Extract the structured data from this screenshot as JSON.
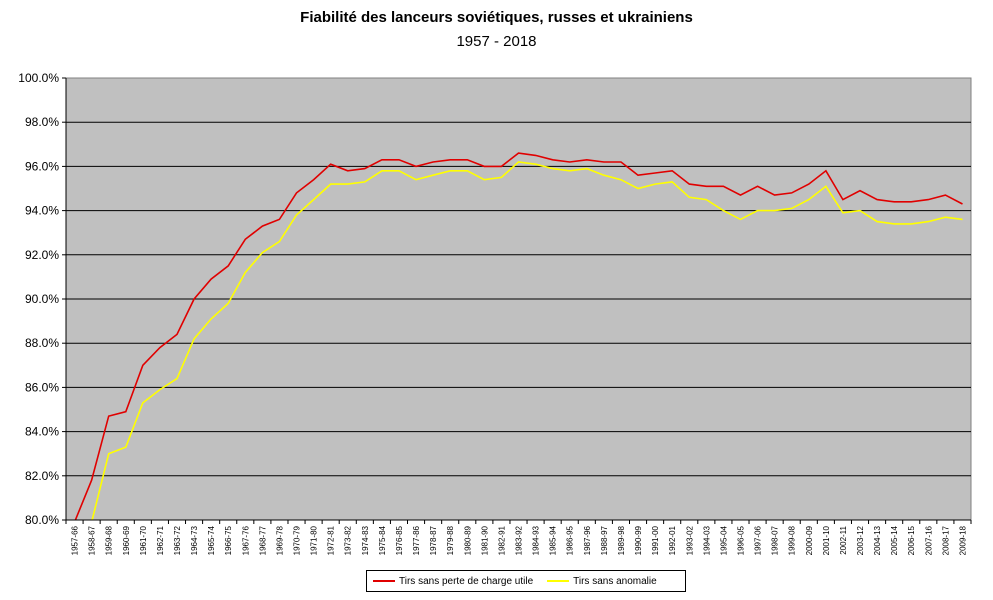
{
  "chart_data": {
    "type": "line",
    "title": "Fiabilité des lanceurs soviétiques, russes et ukrainiens",
    "subtitle": "1957 - 2018",
    "xlabel": "",
    "ylabel": "",
    "ylim": [
      80,
      100
    ],
    "y_ticks": [
      "80.0%",
      "82.0%",
      "84.0%",
      "86.0%",
      "88.0%",
      "90.0%",
      "92.0%",
      "94.0%",
      "96.0%",
      "98.0%",
      "100.0%"
    ],
    "grid": true,
    "legend_position": "bottom",
    "plot_background": "#c0c0c0",
    "categories": [
      "1957-66",
      "1958-67",
      "1959-68",
      "1960-69",
      "1961-70",
      "1962-71",
      "1963-72",
      "1964-73",
      "1965-74",
      "1966-75",
      "1967-76",
      "1968-77",
      "1969-78",
      "1970-79",
      "1971-80",
      "1972-81",
      "1973-82",
      "1974-83",
      "1975-84",
      "1976-85",
      "1977-86",
      "1978-87",
      "1979-88",
      "1980-89",
      "1981-90",
      "1982-91",
      "1983-92",
      "1984-93",
      "1985-94",
      "1986-95",
      "1987-96",
      "1988-97",
      "1989-98",
      "1990-99",
      "1991-00",
      "1992-01",
      "1993-02",
      "1994-03",
      "1995-04",
      "1996-05",
      "1997-06",
      "1998-07",
      "1999-08",
      "2000-09",
      "2001-10",
      "2002-11",
      "2003-12",
      "2004-13",
      "2005-14",
      "2006-15",
      "2007-16",
      "2008-17",
      "2009-18"
    ],
    "series": [
      {
        "name": "Tirs sans perte de charge utile",
        "color": "#e00000",
        "values": [
          79.9,
          81.8,
          84.7,
          84.9,
          87.0,
          87.8,
          88.4,
          90.0,
          90.9,
          91.5,
          92.7,
          93.3,
          93.6,
          94.8,
          95.4,
          96.1,
          95.8,
          95.9,
          96.3,
          96.3,
          96.0,
          96.2,
          96.3,
          96.3,
          96.0,
          96.0,
          96.6,
          96.5,
          96.3,
          96.2,
          96.3,
          96.2,
          96.2,
          95.6,
          95.7,
          95.8,
          95.2,
          95.1,
          95.1,
          94.7,
          95.1,
          94.7,
          94.8,
          95.2,
          95.8,
          94.5,
          94.9,
          94.5,
          94.4,
          94.4,
          94.5,
          94.7,
          94.3
        ]
      },
      {
        "name": "Tirs sans anomalie",
        "color": "#ffff00",
        "values": [
          78.5,
          79.9,
          83.0,
          83.3,
          85.3,
          85.9,
          86.4,
          88.2,
          89.1,
          89.8,
          91.2,
          92.1,
          92.6,
          93.8,
          94.5,
          95.2,
          95.2,
          95.3,
          95.8,
          95.8,
          95.4,
          95.6,
          95.8,
          95.8,
          95.4,
          95.5,
          96.2,
          96.1,
          95.9,
          95.8,
          95.9,
          95.6,
          95.4,
          95.0,
          95.2,
          95.3,
          94.6,
          94.5,
          94.0,
          93.6,
          94.0,
          94.0,
          94.1,
          94.5,
          95.1,
          93.9,
          94.0,
          93.5,
          93.4,
          93.4,
          93.5,
          93.7,
          93.6
        ]
      }
    ]
  }
}
